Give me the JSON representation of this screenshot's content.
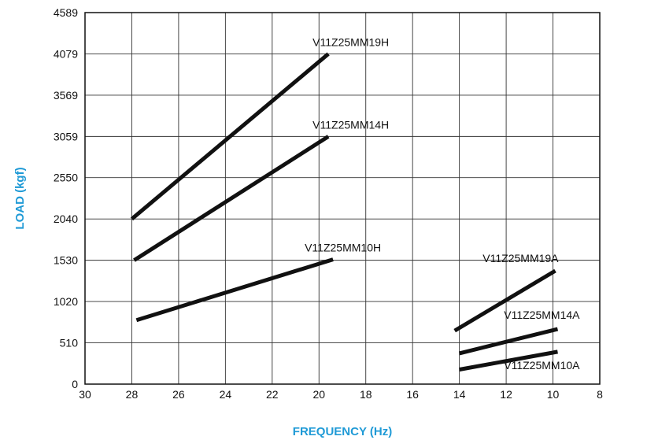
{
  "chart_data": {
    "type": "line",
    "title": "",
    "xlabel": "FREQUENCY (Hz)",
    "ylabel": "LOAD (kgf)",
    "xlim": [
      30,
      8
    ],
    "ylim": [
      0,
      4589
    ],
    "x_reversed": true,
    "grid": true,
    "x_ticks": [
      "30",
      "28",
      "26",
      "24",
      "22",
      "20",
      "18",
      "16",
      "14",
      "12",
      "10",
      "8"
    ],
    "y_ticks": [
      "0",
      "510",
      "1020",
      "1530",
      "2040",
      "2550",
      "3059",
      "3569",
      "4079",
      "4589"
    ],
    "axis_title_color": "#1f9ad6",
    "line_color": "#111111",
    "series": [
      {
        "name": "V11Z25MM19H",
        "x": [
          28,
          19.6
        ],
        "y": [
          2040,
          4079
        ]
      },
      {
        "name": "V11Z25MM14H",
        "x": [
          27.9,
          19.6
        ],
        "y": [
          1530,
          3059
        ]
      },
      {
        "name": "V11Z25MM10H",
        "x": [
          27.8,
          19.4
        ],
        "y": [
          790,
          1540
        ]
      },
      {
        "name": "V11Z25MM19A",
        "x": [
          14.2,
          9.9
        ],
        "y": [
          660,
          1400
        ]
      },
      {
        "name": "V11Z25MM14A",
        "x": [
          14,
          9.8
        ],
        "y": [
          380,
          680
        ]
      },
      {
        "name": "V11Z25MM10A",
        "x": [
          14,
          9.8
        ],
        "y": [
          180,
          400
        ]
      }
    ]
  }
}
